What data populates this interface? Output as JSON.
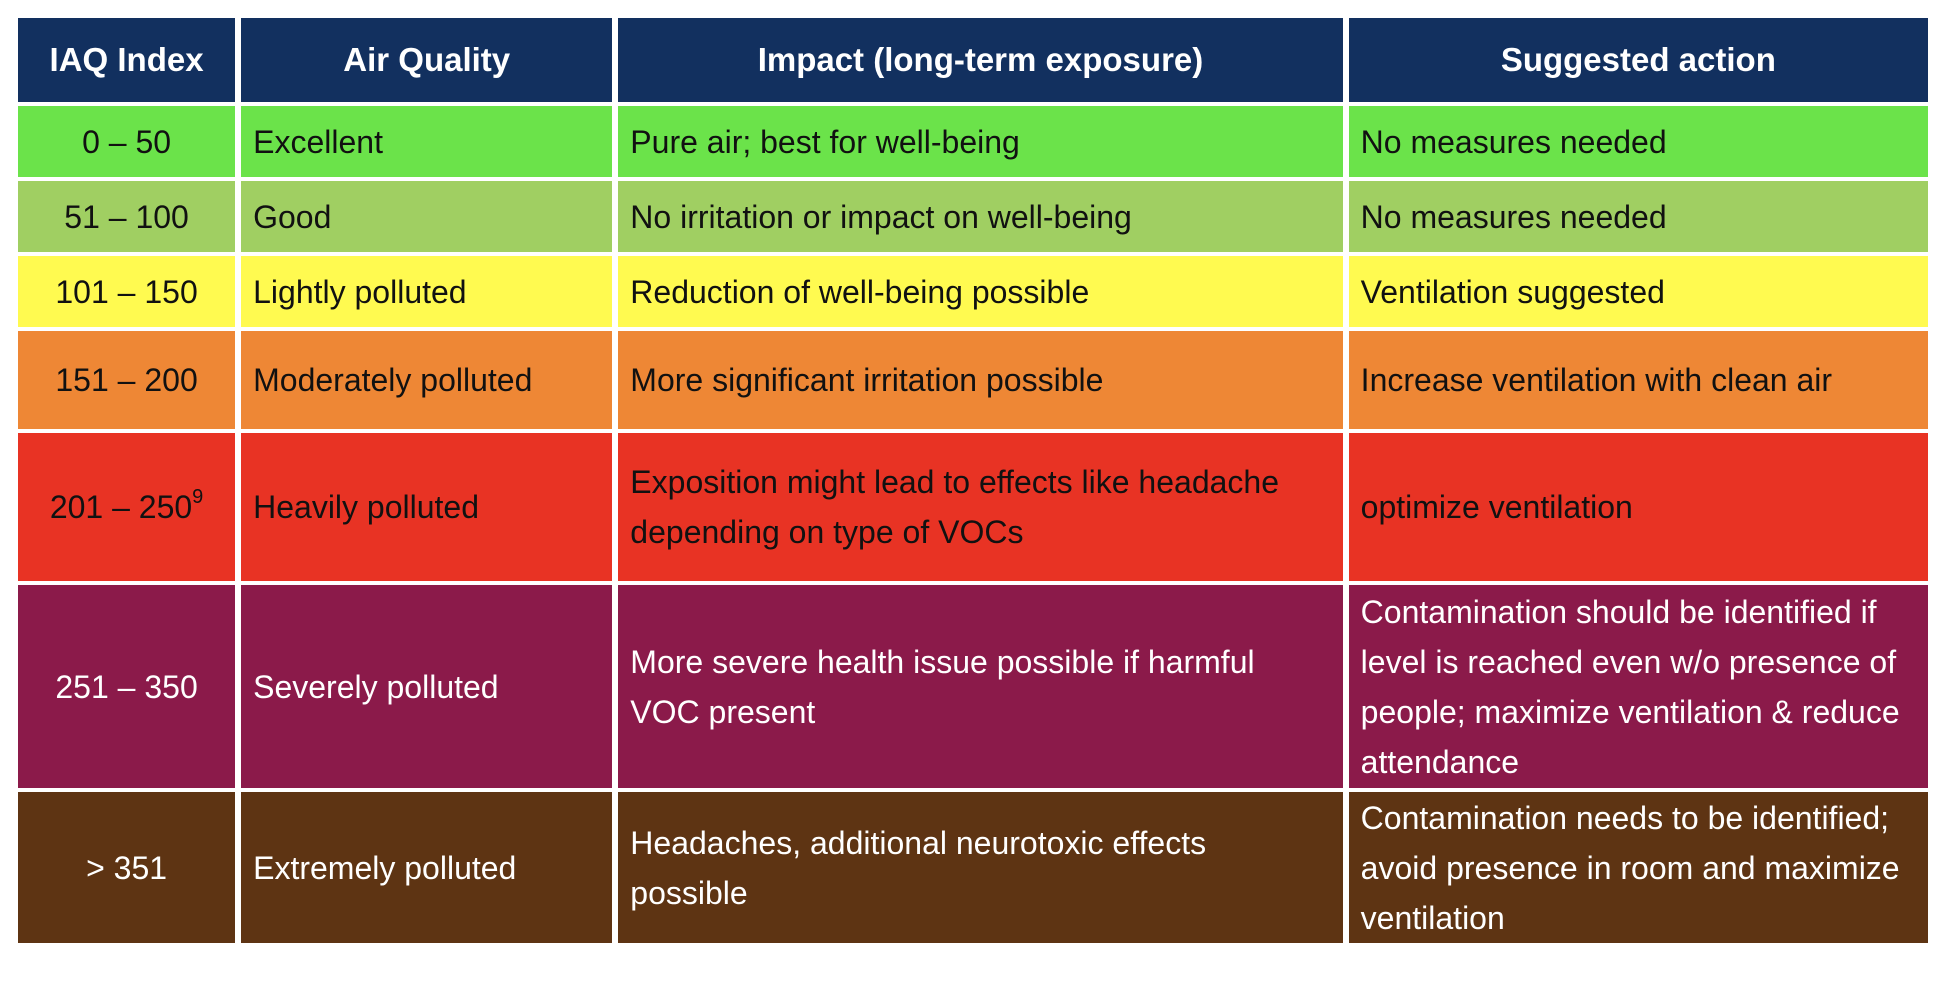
{
  "headers": [
    "IAQ Index",
    "Air Quality",
    "Impact (long-term exposure)",
    "Suggested action"
  ],
  "rows": [
    {
      "index": "0 – 50",
      "quality": "Excellent",
      "impact": "Pure air; best for well-being",
      "action": "No measures needed",
      "color": "#6be34a"
    },
    {
      "index": "51 – 100",
      "quality": "Good",
      "impact": "No irritation or impact on well-being",
      "action": "No measures needed",
      "color": "#a0cf62"
    },
    {
      "index": "101 – 150",
      "quality": "Lightly polluted",
      "impact": "Reduction of well-being possible",
      "action": "Ventilation suggested",
      "color": "#fffa50"
    },
    {
      "index": "151 – 200",
      "quality": "Moderately polluted",
      "impact": "More significant irritation possible",
      "action": "Increase ventilation with clean air",
      "color": "#ee8735"
    },
    {
      "index": "201 – 250",
      "index_footnote": "9",
      "quality": "Heavily polluted",
      "impact": "Exposition might lead to effects like headache depending on type of VOCs",
      "action": "optimize ventilation",
      "color": "#e83324"
    },
    {
      "index": "251 – 350",
      "quality": "Severely polluted",
      "impact": "More severe health issue possible if harmful VOC present",
      "action": "Contamination should be identified if level is reached even w/o presence of people; maximize ventilation & reduce attendance",
      "color": "#8b1a4a"
    },
    {
      "index": "> 351",
      "quality": "Extremely polluted",
      "impact": "Headaches, additional neurotoxic effects possible",
      "action": "Contamination needs to be identified; avoid presence in room and maximize ventilation",
      "color": "#5e3413"
    }
  ],
  "header_color": "#12305f"
}
